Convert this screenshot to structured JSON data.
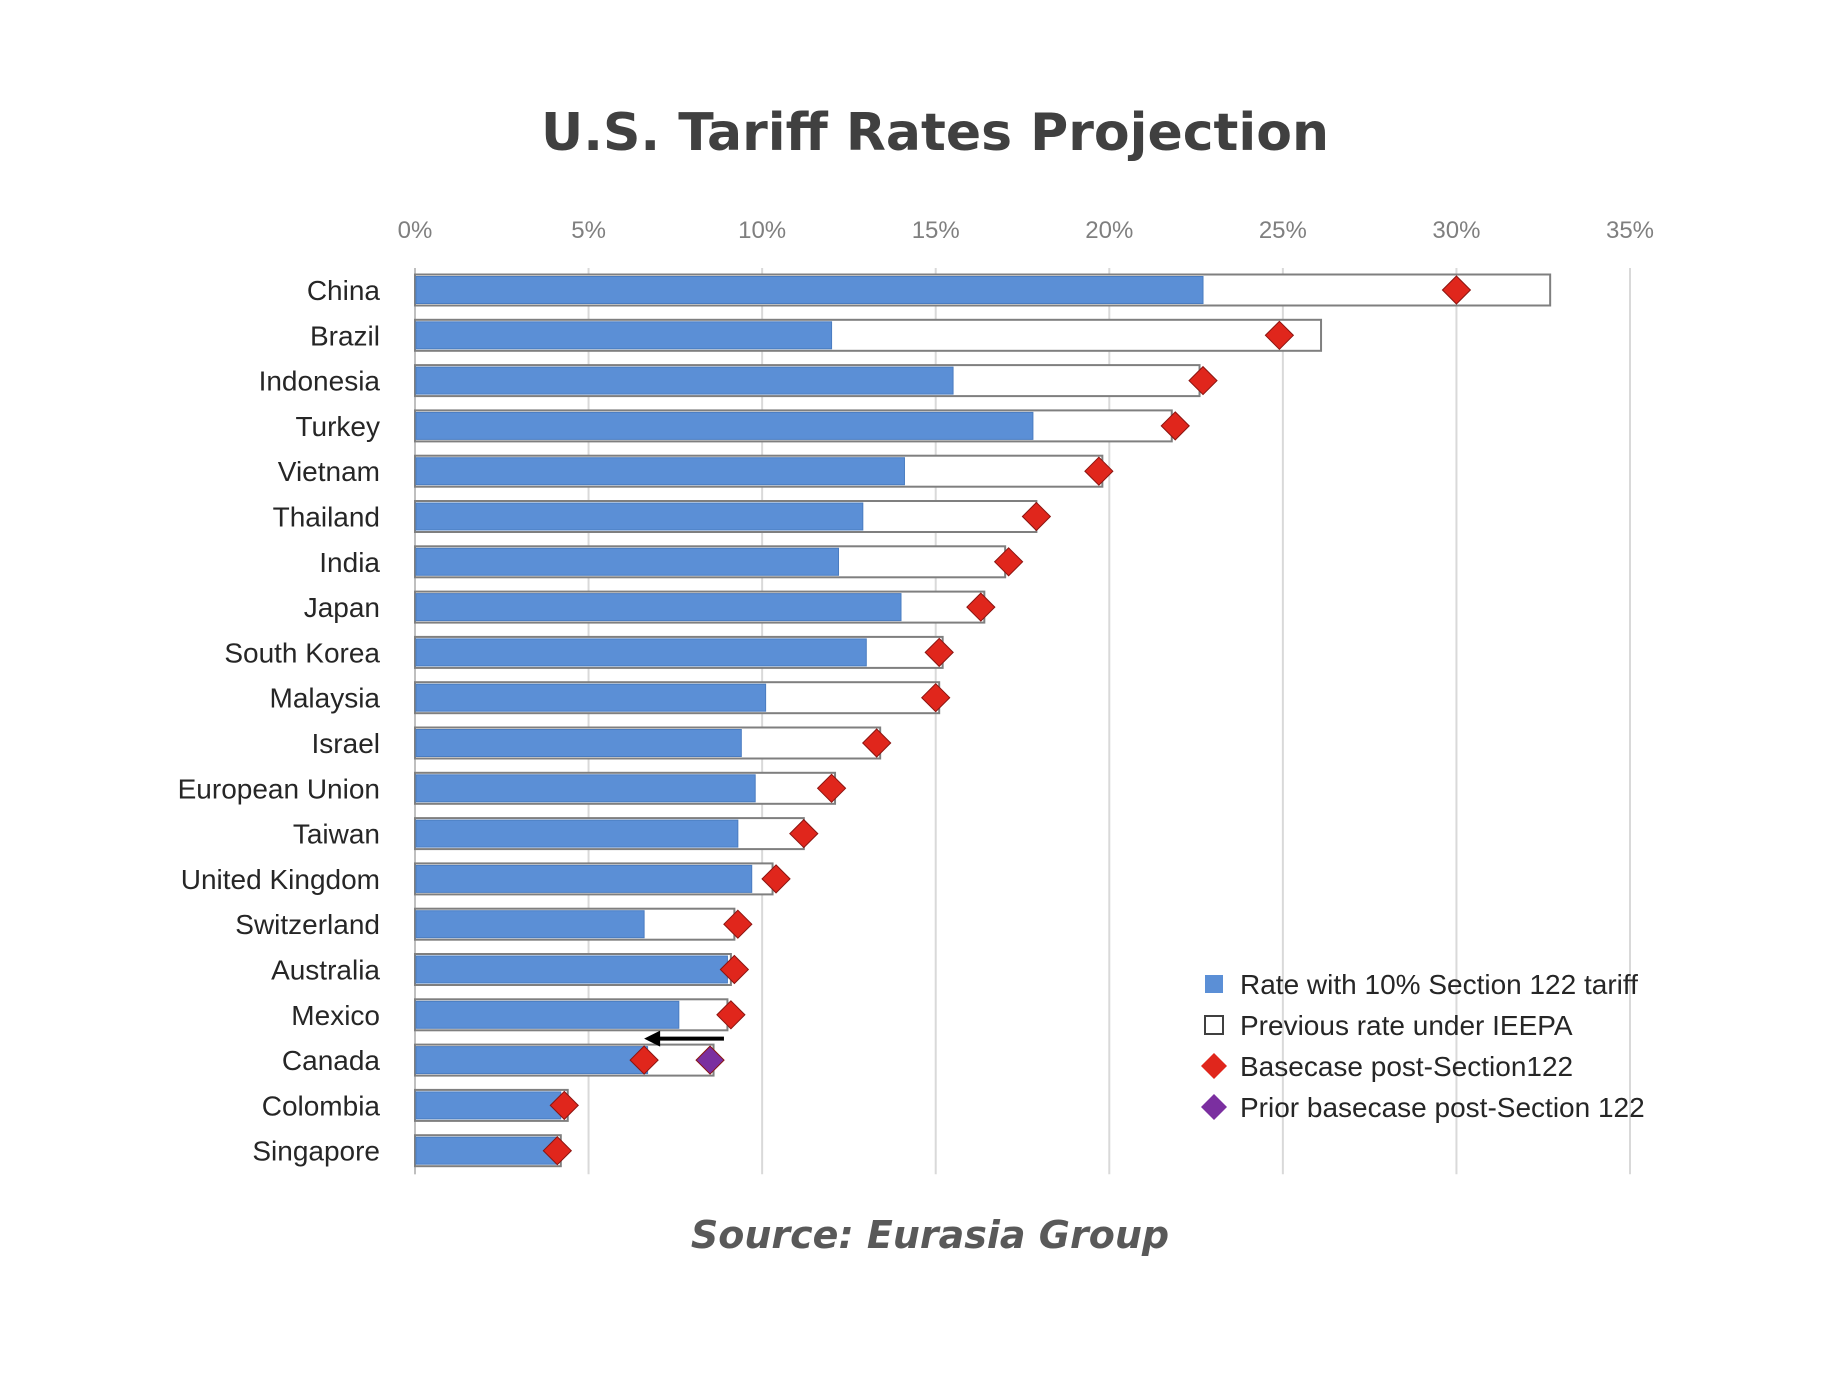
{
  "chart_data": {
    "type": "bar",
    "title": "U.S. Tariff Rates Projection",
    "source": "Source: Eurasia Group",
    "xlim": [
      0,
      35
    ],
    "x_ticks": [
      "0%",
      "5%",
      "10%",
      "15%",
      "20%",
      "25%",
      "30%",
      "35%"
    ],
    "grid": true,
    "legend_position": "bottom-right",
    "categories": [
      "China",
      "Brazil",
      "Indonesia",
      "Turkey",
      "Vietnam",
      "Thailand",
      "India",
      "Japan",
      "South Korea",
      "Malaysia",
      "Israel",
      "European Union",
      "Taiwan",
      "United Kingdom",
      "Switzerland",
      "Australia",
      "Mexico",
      "Canada",
      "Colombia",
      "Singapore"
    ],
    "series": [
      {
        "name": "Rate with 10% Section 122 tariff",
        "kind": "bar",
        "color": "#5b8fd6",
        "values": [
          22.7,
          12.0,
          15.5,
          17.8,
          14.1,
          12.9,
          12.2,
          14.0,
          13.0,
          10.1,
          9.4,
          9.8,
          9.3,
          9.7,
          6.6,
          9.0,
          7.6,
          6.7,
          4.2,
          4.1
        ]
      },
      {
        "name": "Previous rate under IEEPA",
        "kind": "bar-outline",
        "color": "#ffffff",
        "values": [
          32.7,
          26.1,
          22.6,
          21.8,
          19.8,
          17.9,
          17.0,
          16.4,
          15.2,
          15.1,
          13.4,
          12.1,
          11.2,
          10.3,
          9.2,
          9.1,
          9.0,
          8.6,
          4.4,
          4.2
        ]
      },
      {
        "name": "Basecase post-Section122",
        "kind": "marker",
        "color": "#e0261c",
        "values": [
          30.0,
          24.9,
          22.7,
          21.9,
          19.7,
          17.9,
          17.1,
          16.3,
          15.1,
          15.0,
          13.3,
          12.0,
          11.2,
          10.4,
          9.3,
          9.2,
          9.1,
          6.6,
          4.3,
          4.1
        ]
      },
      {
        "name": "Prior basecase post-Section 122",
        "kind": "marker",
        "color": "#7b2fa0",
        "values": [
          null,
          null,
          null,
          null,
          null,
          null,
          null,
          null,
          null,
          null,
          null,
          null,
          null,
          null,
          null,
          null,
          null,
          8.5,
          null,
          null
        ]
      }
    ],
    "annotations": [
      {
        "type": "arrow",
        "category": "Canada",
        "from": 8.9,
        "to": 6.6
      }
    ]
  }
}
